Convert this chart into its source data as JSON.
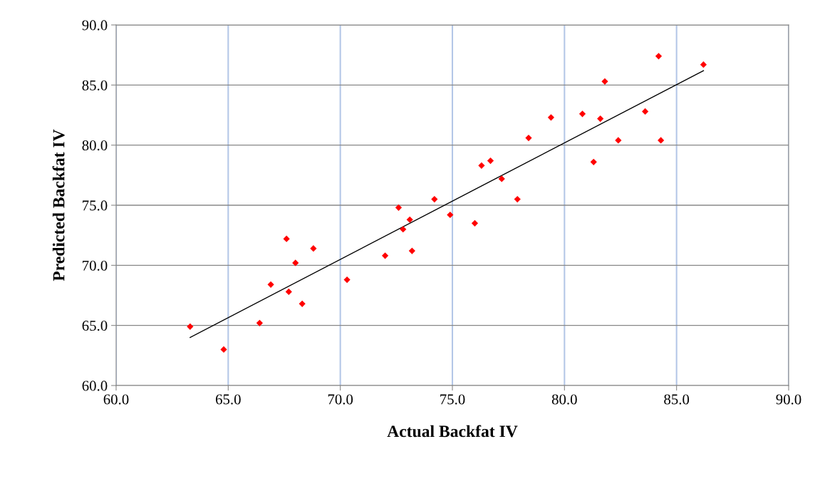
{
  "chart_data": {
    "type": "scatter",
    "xlabel": "Actual Backfat IV",
    "ylabel": "Predicted Backfat IV",
    "xlim": [
      60,
      90
    ],
    "ylim": [
      60,
      90
    ],
    "xticks": [
      {
        "value": 60,
        "label": "60.0"
      },
      {
        "value": 65,
        "label": "65.0"
      },
      {
        "value": 70,
        "label": "70.0"
      },
      {
        "value": 75,
        "label": "75.0"
      },
      {
        "value": 80,
        "label": "80.0"
      },
      {
        "value": 85,
        "label": "85.0"
      },
      {
        "value": 90,
        "label": "90.0"
      }
    ],
    "yticks": [
      {
        "value": 60,
        "label": "60.0"
      },
      {
        "value": 65,
        "label": "65.0"
      },
      {
        "value": 70,
        "label": "70.0"
      },
      {
        "value": 75,
        "label": "75.0"
      },
      {
        "value": 80,
        "label": "80.0"
      },
      {
        "value": 85,
        "label": "85.0"
      },
      {
        "value": 90,
        "label": "90.0"
      }
    ],
    "grid": true,
    "marker": "diamond",
    "series": [
      {
        "color": "#ff0000",
        "x": [
          63.3,
          64.8,
          66.4,
          66.9,
          67.6,
          67.7,
          68.0,
          68.3,
          68.8,
          70.3,
          72.0,
          72.6,
          72.8,
          73.1,
          73.2,
          74.2,
          74.9,
          76.0,
          76.3,
          76.7,
          77.2,
          77.9,
          78.4,
          79.4,
          80.8,
          81.3,
          81.6,
          81.8,
          82.4,
          83.6,
          84.2,
          84.3,
          86.2
        ],
        "values": [
          64.9,
          63.0,
          65.2,
          68.4,
          72.2,
          67.8,
          70.2,
          66.8,
          71.4,
          68.8,
          70.8,
          74.8,
          73.0,
          73.8,
          71.2,
          75.5,
          74.2,
          73.5,
          78.3,
          78.7,
          77.2,
          75.5,
          80.6,
          82.3,
          82.6,
          78.6,
          82.2,
          85.3,
          80.4,
          82.8,
          87.4,
          80.4,
          86.7
        ]
      },
      {
        "type": "line",
        "color": "#000000",
        "marker": "none",
        "x": [
          63.3,
          86.2
        ],
        "values": [
          64.0,
          86.2
        ]
      }
    ]
  }
}
